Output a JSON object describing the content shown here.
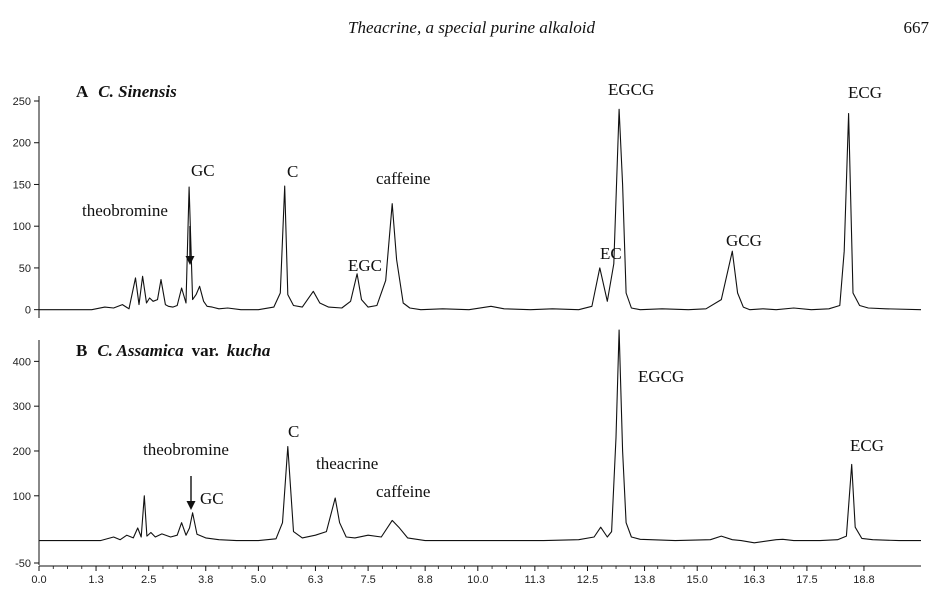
{
  "header": {
    "running_title": "Theacrine, a special purine alkaloid",
    "page_number": "667"
  },
  "chart_data": [
    {
      "type": "line",
      "panel_letter": "A",
      "title": "C. Sinensis",
      "ylim": [
        -10,
        250
      ],
      "yticks": [
        "0",
        "50",
        "100",
        "150",
        "200",
        "250"
      ],
      "ytick_values": [
        0,
        50,
        100,
        150,
        200,
        250
      ],
      "series": [
        {
          "x": [
            0.0,
            1.2,
            1.5,
            1.7,
            1.9,
            2.05,
            2.2,
            2.28,
            2.36,
            2.45,
            2.52,
            2.6,
            2.7,
            2.78,
            2.88,
            2.95,
            3.05,
            3.15,
            3.25,
            3.35,
            3.42,
            3.5,
            3.58,
            3.66,
            3.75,
            3.83,
            3.95,
            4.1,
            4.3,
            4.6,
            5.0,
            5.35,
            5.5,
            5.6,
            5.67,
            5.8,
            6.0,
            6.25,
            6.4,
            6.6,
            6.9,
            7.1,
            7.25,
            7.35,
            7.5,
            7.7,
            7.9,
            8.05,
            8.15,
            8.3,
            8.45,
            8.7,
            9.2,
            9.8,
            10.3,
            10.6,
            11.2,
            11.7,
            12.3,
            12.6,
            12.78,
            12.95,
            13.1,
            13.22,
            13.3,
            13.38,
            13.5,
            13.7,
            14.2,
            14.8,
            15.2,
            15.55,
            15.8,
            15.92,
            16.05,
            16.2,
            16.5,
            16.8,
            17.2,
            17.6,
            18.0,
            18.25,
            18.35,
            18.45,
            18.55,
            18.7,
            18.9,
            19.3,
            20.1
          ],
          "y": [
            0,
            0,
            3,
            2,
            6,
            1,
            38,
            6,
            40,
            8,
            14,
            10,
            12,
            36,
            6,
            4,
            3,
            5,
            26,
            8,
            147,
            12,
            18,
            28,
            10,
            4,
            3,
            1,
            2,
            0,
            0,
            3,
            20,
            148,
            18,
            5,
            3,
            22,
            8,
            3,
            2,
            10,
            43,
            12,
            3,
            5,
            35,
            127,
            60,
            8,
            2,
            0,
            1,
            0,
            4,
            1,
            0,
            1,
            0,
            4,
            50,
            10,
            55,
            240,
            150,
            20,
            2,
            0,
            1,
            0,
            1,
            12,
            70,
            20,
            3,
            0,
            1,
            0,
            2,
            0,
            1,
            5,
            70,
            235,
            20,
            5,
            2,
            1,
            0
          ]
        }
      ],
      "peak_labels": [
        "theobromine",
        "GC",
        "C",
        "caffeine",
        "EGC",
        "EC",
        "EGCG",
        "GCG",
        "ECG"
      ]
    },
    {
      "type": "line",
      "panel_letter": "B",
      "title_species": "C. Assamica",
      "title_var": "var.",
      "title_variety": "kucha",
      "ylim": [
        -50,
        470
      ],
      "yticks": [
        "-50",
        "100",
        "200",
        "300",
        "400"
      ],
      "ytick_values": [
        -50,
        100,
        200,
        300,
        400
      ],
      "series": [
        {
          "x": [
            0.0,
            1.4,
            1.7,
            1.85,
            2.0,
            2.15,
            2.25,
            2.33,
            2.4,
            2.46,
            2.55,
            2.65,
            2.8,
            3.0,
            3.15,
            3.25,
            3.35,
            3.43,
            3.5,
            3.6,
            3.8,
            4.1,
            4.5,
            5.0,
            5.4,
            5.55,
            5.67,
            5.8,
            6.0,
            6.3,
            6.55,
            6.75,
            6.85,
            7.0,
            7.2,
            7.5,
            7.8,
            8.05,
            8.2,
            8.4,
            8.8,
            9.5,
            10.5,
            11.5,
            12.3,
            12.65,
            12.8,
            12.95,
            13.05,
            13.15,
            13.22,
            13.3,
            13.38,
            13.5,
            13.7,
            14.5,
            15.3,
            15.55,
            15.8,
            16.0,
            16.3,
            16.8,
            16.95,
            17.2,
            17.8,
            18.2,
            18.4,
            18.52,
            18.6,
            18.75,
            19.0,
            19.6,
            20.1
          ],
          "y": [
            0,
            0,
            8,
            2,
            12,
            6,
            28,
            8,
            100,
            10,
            18,
            8,
            15,
            8,
            12,
            40,
            12,
            28,
            62,
            14,
            6,
            2,
            0,
            0,
            4,
            40,
            210,
            20,
            6,
            12,
            20,
            95,
            40,
            8,
            6,
            12,
            8,
            45,
            30,
            6,
            0,
            0,
            0,
            0,
            2,
            8,
            30,
            8,
            20,
            230,
            470,
            200,
            40,
            8,
            3,
            0,
            2,
            10,
            2,
            0,
            -5,
            2,
            3,
            0,
            0,
            2,
            10,
            170,
            30,
            5,
            2,
            0,
            0
          ]
        }
      ],
      "peak_labels": [
        "theobromine",
        "GC",
        "C",
        "theacrine",
        "caffeine",
        "EGCG",
        "ECG"
      ]
    }
  ],
  "x_axis": {
    "xlim": [
      0.0,
      20.1
    ],
    "ticks": [
      "0.0",
      "1.3",
      "2.5",
      "3.8",
      "5.0",
      "6.3",
      "7.5",
      "8.8",
      "10.0",
      "11.3",
      "12.5",
      "13.8",
      "15.0",
      "16.3",
      "17.5",
      "18.8"
    ],
    "tick_values": [
      0.0,
      1.3,
      2.5,
      3.8,
      5.0,
      6.3,
      7.5,
      8.8,
      10.0,
      11.3,
      12.5,
      13.8,
      15.0,
      16.3,
      17.5,
      18.8
    ]
  }
}
